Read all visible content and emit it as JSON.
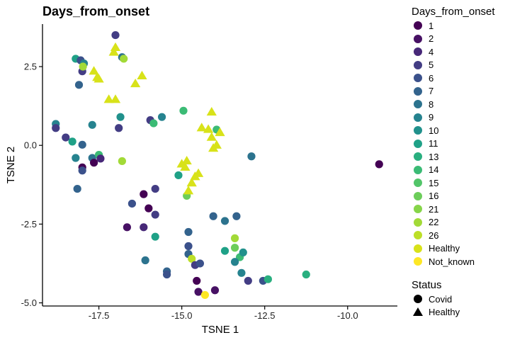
{
  "chart_data": {
    "type": "scatter",
    "title": "Days_from_onset",
    "xlabel": "TSNE 1",
    "ylabel": "TSNE 2",
    "xlim": [
      -19.2,
      -8.5
    ],
    "ylim": [
      -5.1,
      3.85
    ],
    "x_ticks": [
      -17.5,
      -15.0,
      -12.5,
      -10.0
    ],
    "x_tick_labels": [
      "-17.5",
      "-15.0",
      "-12.5",
      "-10.0"
    ],
    "y_ticks": [
      2.5,
      0.0,
      -2.5,
      -5.0
    ],
    "y_tick_labels": [
      "2.5",
      "0.0",
      "-2.5",
      "-5.0"
    ],
    "grid": false,
    "legend_placement": "right",
    "color_legend": {
      "title": "Days_from_onset",
      "entries": [
        {
          "label": "1",
          "color": "#440154"
        },
        {
          "label": "2",
          "color": "#471164"
        },
        {
          "label": "4",
          "color": "#472878"
        },
        {
          "label": "5",
          "color": "#433d84"
        },
        {
          "label": "6",
          "color": "#3b518b"
        },
        {
          "label": "7",
          "color": "#33638d"
        },
        {
          "label": "8",
          "color": "#2c738e"
        },
        {
          "label": "9",
          "color": "#26838f"
        },
        {
          "label": "10",
          "color": "#21918c"
        },
        {
          "label": "11",
          "color": "#1fa187"
        },
        {
          "label": "13",
          "color": "#29af7f"
        },
        {
          "label": "14",
          "color": "#3bbb75"
        },
        {
          "label": "15",
          "color": "#52c569"
        },
        {
          "label": "16",
          "color": "#6ccd5a"
        },
        {
          "label": "21",
          "color": "#86d549"
        },
        {
          "label": "22",
          "color": "#a2da37"
        },
        {
          "label": "26",
          "color": "#bcdf27"
        },
        {
          "label": "Healthy",
          "color": "#d8e219"
        },
        {
          "label": "Not_known",
          "color": "#fde725"
        }
      ]
    },
    "shape_legend": {
      "title": "Status",
      "entries": [
        {
          "label": "Covid",
          "shape": "circle"
        },
        {
          "label": "Healthy",
          "shape": "triangle"
        }
      ]
    },
    "points": [
      {
        "x": -17.0,
        "y": 3.5,
        "group": "5",
        "shape": "circle"
      },
      {
        "x": -18.2,
        "y": 2.75,
        "group": "11",
        "shape": "circle"
      },
      {
        "x": -18.05,
        "y": 2.7,
        "group": "6",
        "shape": "circle"
      },
      {
        "x": -17.95,
        "y": 2.6,
        "group": "9",
        "shape": "circle"
      },
      {
        "x": -18.0,
        "y": 2.35,
        "group": "5",
        "shape": "circle"
      },
      {
        "x": -17.98,
        "y": 2.5,
        "group": "22",
        "shape": "circle"
      },
      {
        "x": -18.1,
        "y": 1.92,
        "group": "7",
        "shape": "circle"
      },
      {
        "x": -16.8,
        "y": 2.8,
        "group": "8",
        "shape": "circle"
      },
      {
        "x": -16.75,
        "y": 2.75,
        "group": "22",
        "shape": "circle"
      },
      {
        "x": -16.85,
        "y": 0.9,
        "group": "10",
        "shape": "circle"
      },
      {
        "x": -16.9,
        "y": 0.55,
        "group": "5",
        "shape": "circle"
      },
      {
        "x": -16.8,
        "y": -0.5,
        "group": "22",
        "shape": "circle"
      },
      {
        "x": -15.95,
        "y": 0.8,
        "group": "5",
        "shape": "circle"
      },
      {
        "x": -15.85,
        "y": 0.7,
        "group": "14",
        "shape": "circle"
      },
      {
        "x": -15.6,
        "y": 0.9,
        "group": "9",
        "shape": "circle"
      },
      {
        "x": -14.95,
        "y": 1.1,
        "group": "14",
        "shape": "circle"
      },
      {
        "x": -18.8,
        "y": 0.68,
        "group": "9",
        "shape": "circle"
      },
      {
        "x": -18.8,
        "y": 0.55,
        "group": "5",
        "shape": "circle"
      },
      {
        "x": -18.5,
        "y": 0.25,
        "group": "5",
        "shape": "circle"
      },
      {
        "x": -18.3,
        "y": 0.12,
        "group": "11",
        "shape": "circle"
      },
      {
        "x": -18.0,
        "y": 0.02,
        "group": "7",
        "shape": "circle"
      },
      {
        "x": -17.7,
        "y": 0.65,
        "group": "9",
        "shape": "circle"
      },
      {
        "x": -18.2,
        "y": -0.4,
        "group": "9",
        "shape": "circle"
      },
      {
        "x": -17.7,
        "y": -0.4,
        "group": "8",
        "shape": "circle"
      },
      {
        "x": -17.5,
        "y": -0.3,
        "group": "14",
        "shape": "circle"
      },
      {
        "x": -17.45,
        "y": -0.42,
        "group": "4",
        "shape": "circle"
      },
      {
        "x": -17.65,
        "y": -0.55,
        "group": "1",
        "shape": "circle"
      },
      {
        "x": -18.0,
        "y": -0.7,
        "group": "1",
        "shape": "circle"
      },
      {
        "x": -18.0,
        "y": -0.8,
        "group": "6",
        "shape": "circle"
      },
      {
        "x": -18.15,
        "y": -1.38,
        "group": "7",
        "shape": "circle"
      },
      {
        "x": -16.15,
        "y": -1.55,
        "group": "1",
        "shape": "circle"
      },
      {
        "x": -16.5,
        "y": -1.85,
        "group": "6",
        "shape": "circle"
      },
      {
        "x": -16.0,
        "y": -2.0,
        "group": "1",
        "shape": "circle"
      },
      {
        "x": -15.8,
        "y": -2.2,
        "group": "5",
        "shape": "circle"
      },
      {
        "x": -15.8,
        "y": -1.38,
        "group": "5",
        "shape": "circle"
      },
      {
        "x": -16.65,
        "y": -2.6,
        "group": "2",
        "shape": "circle"
      },
      {
        "x": -16.15,
        "y": -2.6,
        "group": "4",
        "shape": "circle"
      },
      {
        "x": -15.8,
        "y": -2.9,
        "group": "11",
        "shape": "circle"
      },
      {
        "x": -16.1,
        "y": -3.65,
        "group": "8",
        "shape": "circle"
      },
      {
        "x": -15.45,
        "y": -4.0,
        "group": "7",
        "shape": "circle"
      },
      {
        "x": -15.45,
        "y": -4.1,
        "group": "6",
        "shape": "circle"
      },
      {
        "x": -15.1,
        "y": -0.95,
        "group": "11",
        "shape": "circle"
      },
      {
        "x": -14.85,
        "y": -1.6,
        "group": "16",
        "shape": "circle"
      },
      {
        "x": -14.8,
        "y": -2.75,
        "group": "7",
        "shape": "circle"
      },
      {
        "x": -14.8,
        "y": -3.2,
        "group": "6",
        "shape": "circle"
      },
      {
        "x": -14.8,
        "y": -3.45,
        "group": "7",
        "shape": "circle"
      },
      {
        "x": -14.7,
        "y": -3.6,
        "group": "26",
        "shape": "circle"
      },
      {
        "x": -14.6,
        "y": -3.8,
        "group": "5",
        "shape": "circle"
      },
      {
        "x": -14.45,
        "y": -3.75,
        "group": "6",
        "shape": "circle"
      },
      {
        "x": -14.55,
        "y": -4.3,
        "group": "1",
        "shape": "circle"
      },
      {
        "x": -14.5,
        "y": -4.65,
        "group": "2",
        "shape": "circle"
      },
      {
        "x": -14.3,
        "y": -4.75,
        "group": "Not_known",
        "shape": "circle"
      },
      {
        "x": -14.05,
        "y": -2.25,
        "group": "7",
        "shape": "circle"
      },
      {
        "x": -13.95,
        "y": 0.5,
        "group": "14",
        "shape": "circle"
      },
      {
        "x": -13.7,
        "y": -2.4,
        "group": "8",
        "shape": "circle"
      },
      {
        "x": -13.35,
        "y": -2.25,
        "group": "7",
        "shape": "circle"
      },
      {
        "x": -13.4,
        "y": -2.95,
        "group": "22",
        "shape": "circle"
      },
      {
        "x": -13.4,
        "y": -3.25,
        "group": "16",
        "shape": "circle"
      },
      {
        "x": -13.7,
        "y": -3.35,
        "group": "11",
        "shape": "circle"
      },
      {
        "x": -13.25,
        "y": -3.55,
        "group": "14",
        "shape": "circle"
      },
      {
        "x": -13.15,
        "y": -3.4,
        "group": "10",
        "shape": "circle"
      },
      {
        "x": -13.4,
        "y": -3.7,
        "group": "9",
        "shape": "circle"
      },
      {
        "x": -13.2,
        "y": -4.05,
        "group": "9",
        "shape": "circle"
      },
      {
        "x": -14.0,
        "y": -4.6,
        "group": "2",
        "shape": "circle"
      },
      {
        "x": -13.0,
        "y": -4.3,
        "group": "5",
        "shape": "circle"
      },
      {
        "x": -12.55,
        "y": -4.3,
        "group": "6",
        "shape": "circle"
      },
      {
        "x": -12.4,
        "y": -4.25,
        "group": "13",
        "shape": "circle"
      },
      {
        "x": -12.9,
        "y": -0.35,
        "group": "8",
        "shape": "circle"
      },
      {
        "x": -11.25,
        "y": -4.1,
        "group": "13",
        "shape": "circle"
      },
      {
        "x": -9.05,
        "y": -0.6,
        "group": "1",
        "shape": "circle"
      },
      {
        "x": -17.0,
        "y": 3.1,
        "group": "Healthy",
        "shape": "triangle"
      },
      {
        "x": -17.05,
        "y": 2.95,
        "group": "Healthy",
        "shape": "triangle"
      },
      {
        "x": -16.2,
        "y": 2.2,
        "group": "Healthy",
        "shape": "triangle"
      },
      {
        "x": -16.4,
        "y": 1.95,
        "group": "Healthy",
        "shape": "triangle"
      },
      {
        "x": -17.65,
        "y": 2.35,
        "group": "Healthy",
        "shape": "triangle"
      },
      {
        "x": -17.55,
        "y": 2.15,
        "group": "Healthy",
        "shape": "triangle"
      },
      {
        "x": -17.5,
        "y": 2.1,
        "group": "Healthy",
        "shape": "triangle"
      },
      {
        "x": -17.2,
        "y": 1.45,
        "group": "Healthy",
        "shape": "triangle"
      },
      {
        "x": -17.0,
        "y": 1.45,
        "group": "Healthy",
        "shape": "triangle"
      },
      {
        "x": -14.1,
        "y": 1.05,
        "group": "Healthy",
        "shape": "triangle"
      },
      {
        "x": -14.4,
        "y": 0.55,
        "group": "Healthy",
        "shape": "triangle"
      },
      {
        "x": -14.2,
        "y": 0.5,
        "group": "Healthy",
        "shape": "triangle"
      },
      {
        "x": -13.85,
        "y": 0.4,
        "group": "Healthy",
        "shape": "triangle"
      },
      {
        "x": -14.1,
        "y": 0.25,
        "group": "Healthy",
        "shape": "triangle"
      },
      {
        "x": -13.95,
        "y": 0.0,
        "group": "Healthy",
        "shape": "triangle"
      },
      {
        "x": -14.05,
        "y": -0.1,
        "group": "Healthy",
        "shape": "triangle"
      },
      {
        "x": -14.85,
        "y": -0.5,
        "group": "Healthy",
        "shape": "triangle"
      },
      {
        "x": -15.0,
        "y": -0.6,
        "group": "Healthy",
        "shape": "triangle"
      },
      {
        "x": -14.9,
        "y": -0.7,
        "group": "Healthy",
        "shape": "triangle"
      },
      {
        "x": -14.5,
        "y": -0.9,
        "group": "Healthy",
        "shape": "triangle"
      },
      {
        "x": -14.6,
        "y": -1.0,
        "group": "Healthy",
        "shape": "triangle"
      },
      {
        "x": -14.7,
        "y": -1.2,
        "group": "Healthy",
        "shape": "triangle"
      },
      {
        "x": -14.8,
        "y": -1.45,
        "group": "Healthy",
        "shape": "triangle"
      }
    ]
  }
}
